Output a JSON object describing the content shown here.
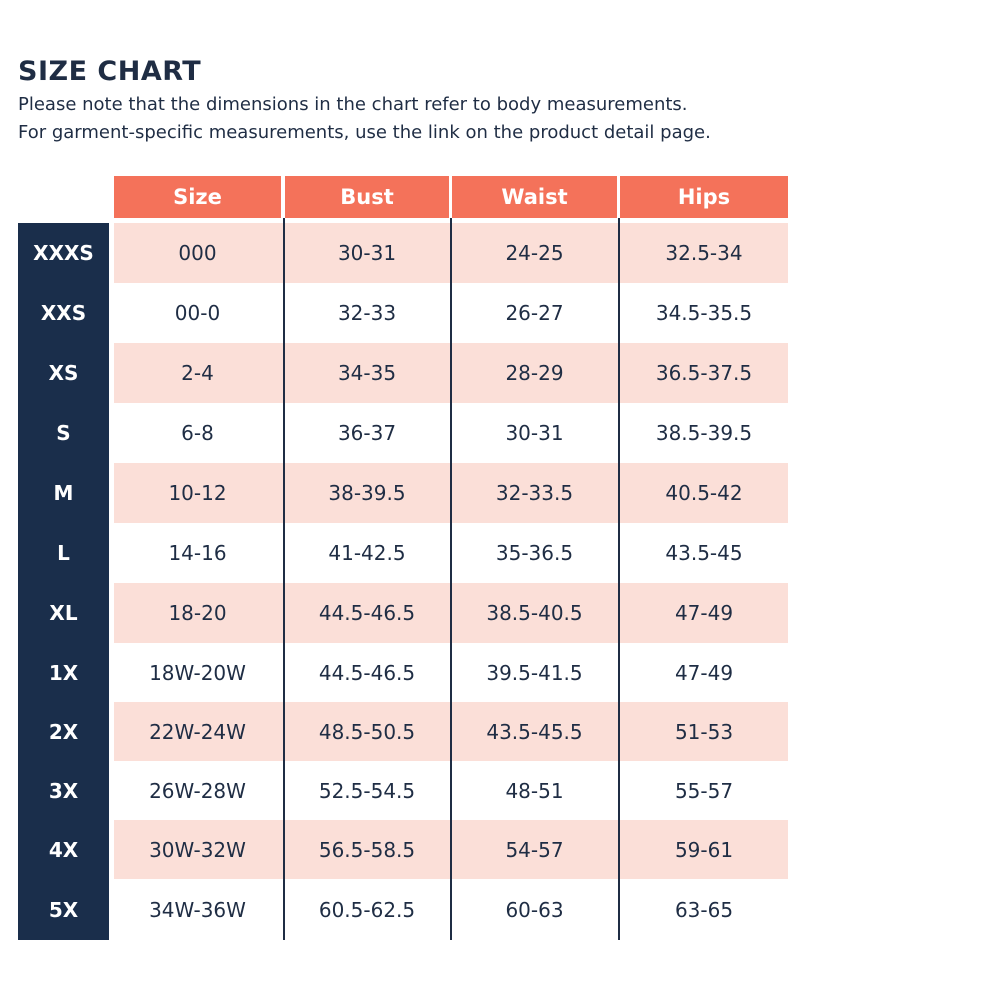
{
  "header": {
    "title": "SIZE CHART",
    "note_line_1": "Please note that the dimensions in the chart refer to body measurements.",
    "note_line_2": "For garment-specific measurements, use the link on the product detail page."
  },
  "colors": {
    "header_bg": "#f4725a",
    "size_column_bg": "#1a2e4b",
    "shaded_row_bg": "#fbdfd8",
    "text": "#1f2d44"
  },
  "table": {
    "columns": [
      "Size",
      "Bust",
      "Waist",
      "Hips"
    ],
    "rows": [
      {
        "label": "XXXS",
        "size": "000",
        "bust": "30-31",
        "waist": "24-25",
        "hips": "32.5-34"
      },
      {
        "label": "XXS",
        "size": "00-0",
        "bust": "32-33",
        "waist": "26-27",
        "hips": "34.5-35.5"
      },
      {
        "label": "XS",
        "size": "2-4",
        "bust": "34-35",
        "waist": "28-29",
        "hips": "36.5-37.5"
      },
      {
        "label": "S",
        "size": "6-8",
        "bust": "36-37",
        "waist": "30-31",
        "hips": "38.5-39.5"
      },
      {
        "label": "M",
        "size": "10-12",
        "bust": "38-39.5",
        "waist": "32-33.5",
        "hips": "40.5-42"
      },
      {
        "label": "L",
        "size": "14-16",
        "bust": "41-42.5",
        "waist": "35-36.5",
        "hips": "43.5-45"
      },
      {
        "label": "XL",
        "size": "18-20",
        "bust": "44.5-46.5",
        "waist": "38.5-40.5",
        "hips": "47-49"
      },
      {
        "label": "1X",
        "size": "18W-20W",
        "bust": "44.5-46.5",
        "waist": "39.5-41.5",
        "hips": "47-49"
      },
      {
        "label": "2X",
        "size": "22W-24W",
        "bust": "48.5-50.5",
        "waist": "43.5-45.5",
        "hips": "51-53"
      },
      {
        "label": "3X",
        "size": "26W-28W",
        "bust": "52.5-54.5",
        "waist": "48-51",
        "hips": "55-57"
      },
      {
        "label": "4X",
        "size": "30W-32W",
        "bust": "56.5-58.5",
        "waist": "54-57",
        "hips": "59-61"
      },
      {
        "label": "5X",
        "size": "34W-36W",
        "bust": "60.5-62.5",
        "waist": "60-63",
        "hips": "63-65"
      }
    ]
  }
}
